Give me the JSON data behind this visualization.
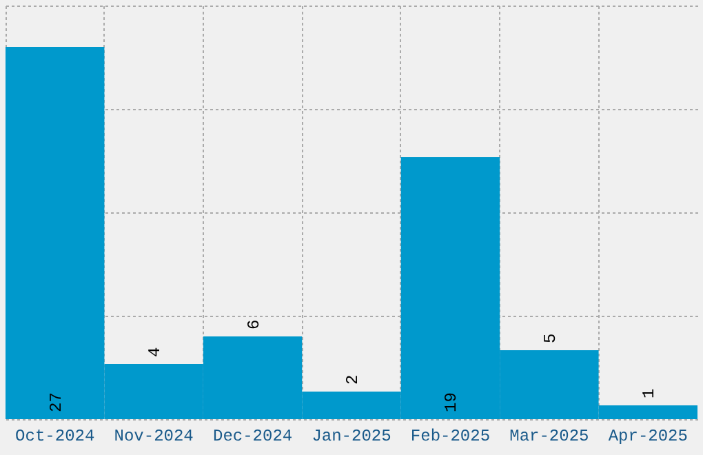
{
  "chart_data": {
    "type": "bar",
    "categories": [
      "Oct-2024",
      "Nov-2024",
      "Dec-2024",
      "Jan-2025",
      "Feb-2025",
      "Mar-2025",
      "Apr-2025"
    ],
    "values": [
      27,
      4,
      6,
      2,
      19,
      5,
      1
    ],
    "color": "#0099cc",
    "data_labels": true,
    "grid": true,
    "tick_labels": "x",
    "ylim": [
      0,
      30
    ],
    "yticks": [
      {
        "value": 0,
        "label": null
      },
      {
        "value": 7.5,
        "label": null
      },
      {
        "value": 15,
        "label": null
      },
      {
        "value": 22.5,
        "label": null
      },
      {
        "value": 30,
        "label": null
      }
    ]
  }
}
